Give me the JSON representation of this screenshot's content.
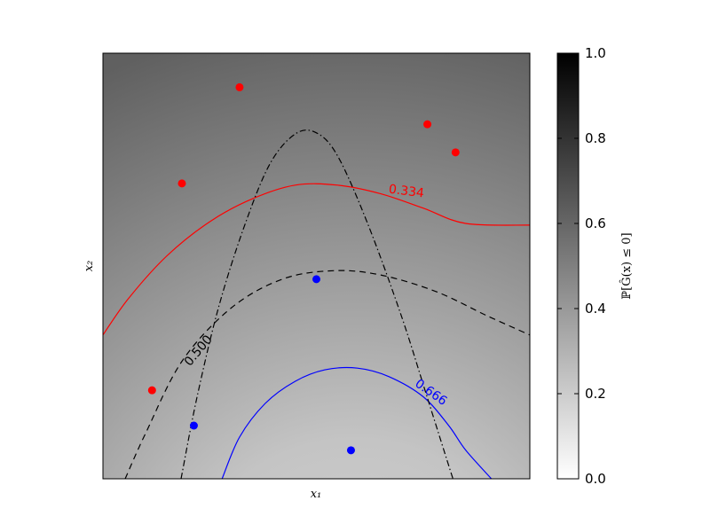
{
  "chart_data": {
    "type": "heatmap",
    "title": "",
    "xlabel": "x₁",
    "ylabel": "x₂",
    "xlim": [
      0,
      1
    ],
    "ylim": [
      0,
      1
    ],
    "grid": false,
    "colorbar": {
      "label": "ℙ[Ĝ(x) ≤ 0]",
      "range": [
        0.0,
        1.0
      ],
      "ticks": [
        "0.0",
        "0.2",
        "0.4",
        "0.6",
        "0.8",
        "1.0"
      ],
      "tick_values": [
        0.0,
        0.2,
        0.4,
        0.6,
        0.8,
        1.0
      ],
      "colormap": "gray_r"
    },
    "points": [
      {
        "x": 0.32,
        "y": 0.92,
        "color": "#ff0000"
      },
      {
        "x": 0.76,
        "y": 0.833,
        "color": "#ff0000"
      },
      {
        "x": 0.826,
        "y": 0.767,
        "color": "#ff0000"
      },
      {
        "x": 0.185,
        "y": 0.694,
        "color": "#ff0000"
      },
      {
        "x": 0.115,
        "y": 0.208,
        "color": "#ff0000"
      },
      {
        "x": 0.5,
        "y": 0.469,
        "color": "#0000ff"
      },
      {
        "x": 0.213,
        "y": 0.125,
        "color": "#0000ff"
      },
      {
        "x": 0.581,
        "y": 0.067,
        "color": "#0000ff"
      }
    ],
    "contours": [
      {
        "level_label": "0.334",
        "color": "#ff0000",
        "style": "solid",
        "points": [
          [
            0.0,
            0.338
          ],
          [
            0.06,
            0.424
          ],
          [
            0.15,
            0.524
          ],
          [
            0.25,
            0.604
          ],
          [
            0.35,
            0.658
          ],
          [
            0.45,
            0.69
          ],
          [
            0.55,
            0.69
          ],
          [
            0.65,
            0.67
          ],
          [
            0.75,
            0.636
          ],
          [
            0.85,
            0.6
          ],
          [
            1.0,
            0.596
          ]
        ]
      },
      {
        "level_label": "0.500",
        "color": "#000000",
        "style": "dashed",
        "points": [
          [
            0.052,
            0.0
          ],
          [
            0.1,
            0.107
          ],
          [
            0.185,
            0.276
          ],
          [
            0.3,
            0.401
          ],
          [
            0.42,
            0.469
          ],
          [
            0.54,
            0.489
          ],
          [
            0.65,
            0.479
          ],
          [
            0.78,
            0.44
          ],
          [
            0.9,
            0.383
          ],
          [
            1.0,
            0.338
          ]
        ]
      },
      {
        "level_label": "0.666",
        "color": "#0000ff",
        "style": "solid",
        "points": [
          [
            0.279,
            0.0
          ],
          [
            0.32,
            0.098
          ],
          [
            0.38,
            0.177
          ],
          [
            0.45,
            0.229
          ],
          [
            0.52,
            0.256
          ],
          [
            0.596,
            0.26
          ],
          [
            0.67,
            0.24
          ],
          [
            0.75,
            0.193
          ],
          [
            0.81,
            0.125
          ],
          [
            0.85,
            0.067
          ],
          [
            0.91,
            0.0
          ]
        ]
      },
      {
        "level_label": "",
        "color": "#000000",
        "style": "dashdot",
        "points": [
          [
            0.183,
            0.0
          ],
          [
            0.22,
            0.19
          ],
          [
            0.27,
            0.4
          ],
          [
            0.33,
            0.59
          ],
          [
            0.39,
            0.738
          ],
          [
            0.45,
            0.81
          ],
          [
            0.5,
            0.813
          ],
          [
            0.55,
            0.758
          ],
          [
            0.62,
            0.6
          ],
          [
            0.7,
            0.38
          ],
          [
            0.76,
            0.19
          ],
          [
            0.81,
            0.031
          ],
          [
            0.82,
            0.0
          ]
        ]
      }
    ]
  }
}
